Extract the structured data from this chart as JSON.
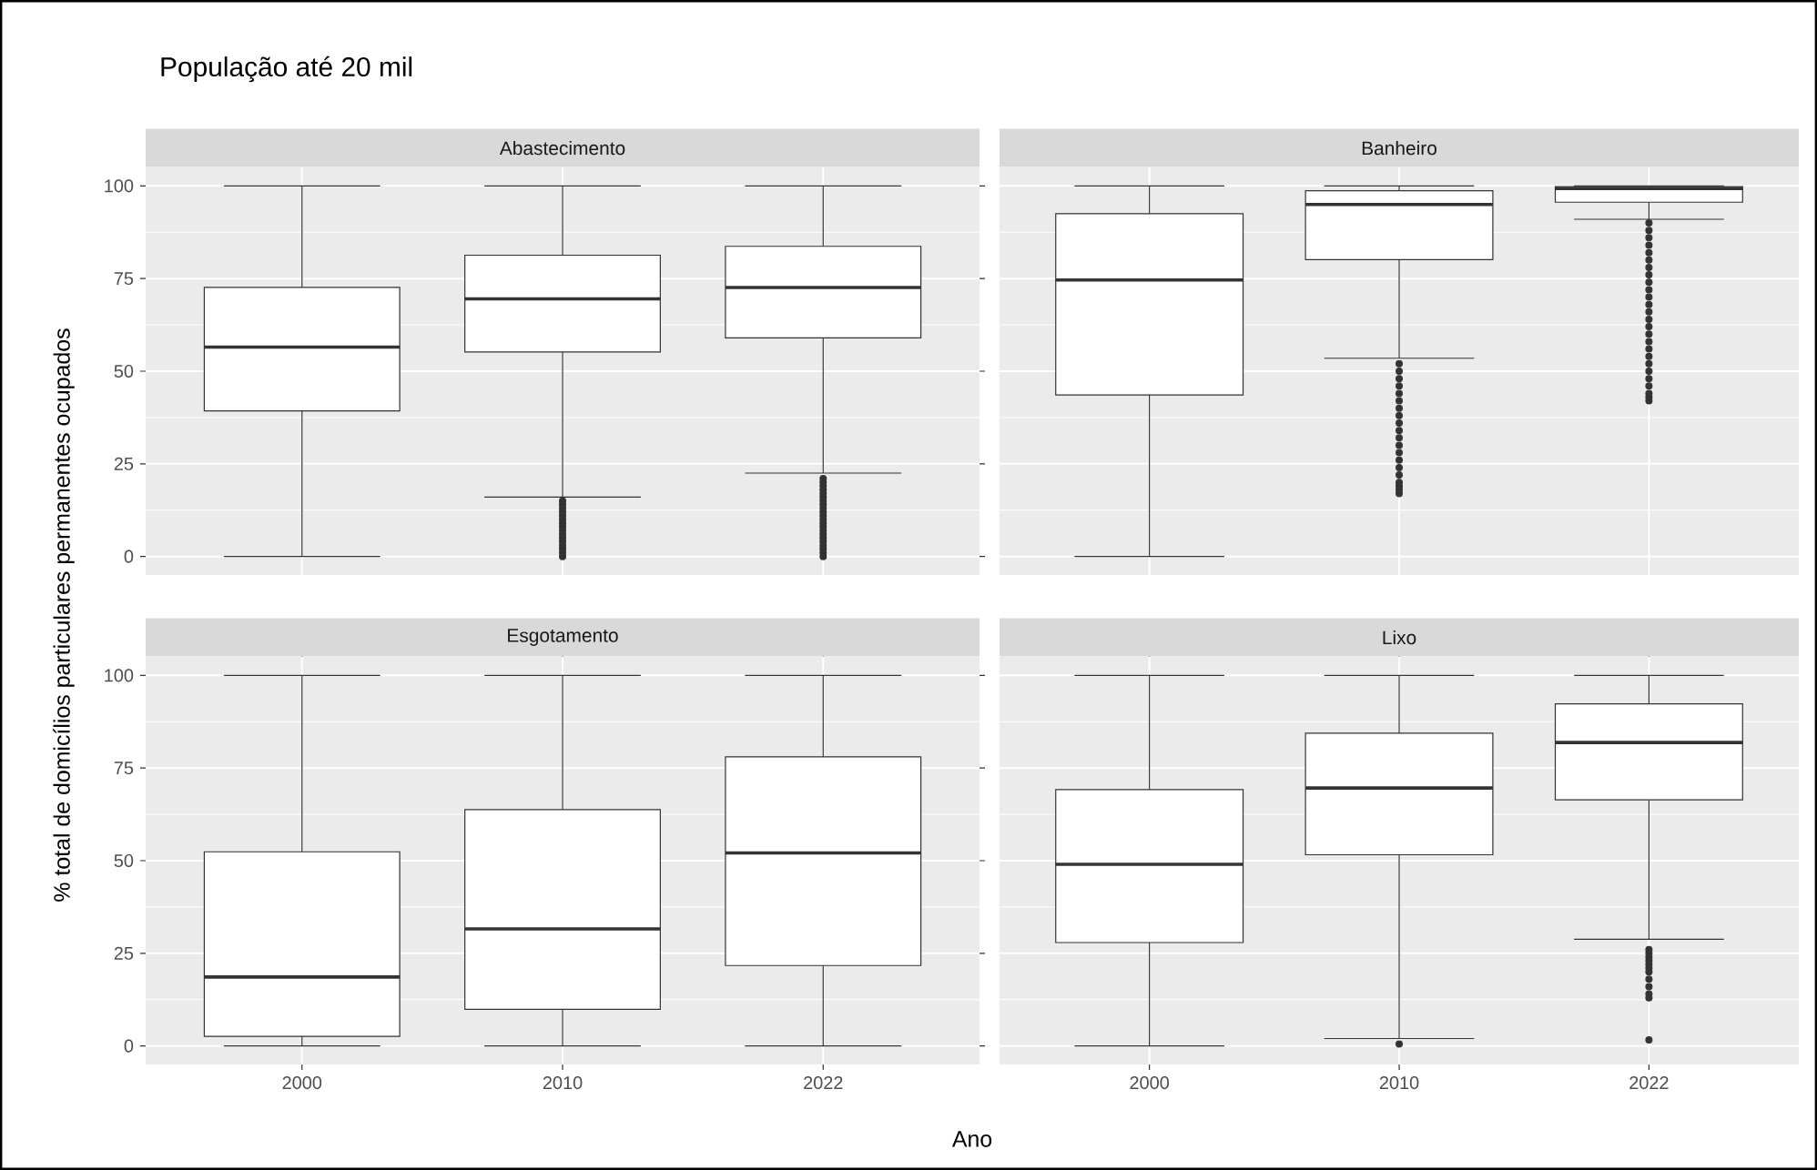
{
  "chart_data": [
    {
      "type": "box",
      "title": "Abastecimento",
      "annotations": [
        "População até 20 mil"
      ],
      "ylabel": "% total de domicílios particulares permanentes ocupados",
      "categories": [
        "2000",
        "2010",
        "2022"
      ],
      "ylim": [
        -5,
        105
      ],
      "yticks": [
        0,
        25,
        50,
        75,
        100
      ],
      "grid": true,
      "tick_labels": "y",
      "boxes": [
        {
          "low": 0,
          "q1": 39.3,
          "median": 56.5,
          "q3": 72.6,
          "high": 100
        },
        {
          "low": 16,
          "q1": 55.2,
          "median": 69.5,
          "q3": 81.3,
          "high": 100,
          "outliers": [
            0,
            1,
            2,
            3,
            4,
            5,
            6,
            7,
            8,
            9,
            10,
            11,
            12,
            13,
            14,
            15
          ]
        },
        {
          "low": 22.5,
          "q1": 59,
          "median": 72.6,
          "q3": 83.7,
          "high": 100,
          "outliers": [
            0,
            1,
            2,
            3,
            4,
            5,
            6,
            7,
            8,
            9,
            10,
            11,
            12,
            13,
            14,
            15,
            16,
            17,
            18,
            19,
            20,
            21
          ]
        }
      ]
    },
    {
      "type": "box",
      "title": "Banheiro",
      "categories": [
        "2000",
        "2010",
        "2022"
      ],
      "ylim": [
        -5,
        105
      ],
      "yticks": [
        0,
        25,
        50,
        75,
        100
      ],
      "grid": true,
      "tick_labels": false,
      "boxes": [
        {
          "low": 0,
          "q1": 43.6,
          "median": 74.6,
          "q3": 92.5,
          "high": 100
        },
        {
          "low": 53.5,
          "q1": 80.1,
          "median": 95,
          "q3": 98.7,
          "high": 100,
          "outliers": [
            17,
            18,
            19,
            20,
            22,
            24,
            26,
            28,
            30,
            32,
            34,
            36,
            38,
            40,
            42,
            44,
            46,
            48,
            50,
            52
          ]
        },
        {
          "low": 91,
          "q1": 95.6,
          "median": 99.3,
          "q3": 99.8,
          "high": 100,
          "outliers": [
            42,
            43,
            44,
            46,
            48,
            50,
            52,
            54,
            56,
            58,
            60,
            62,
            64,
            66,
            68,
            70,
            72,
            74,
            76,
            78,
            80,
            82,
            84,
            86,
            88,
            90
          ]
        }
      ]
    },
    {
      "type": "box",
      "title": "Esgotamento",
      "xlabel": "Ano",
      "categories": [
        "2000",
        "2010",
        "2022"
      ],
      "ylim": [
        -5,
        105
      ],
      "yticks": [
        0,
        25,
        50,
        75,
        100
      ],
      "grid": true,
      "boxes": [
        {
          "low": 0,
          "q1": 2.6,
          "median": 18.6,
          "q3": 52.4,
          "high": 100
        },
        {
          "low": 0,
          "q1": 9.9,
          "median": 31.6,
          "q3": 63.8,
          "high": 100
        },
        {
          "low": 0,
          "q1": 21.7,
          "median": 52.1,
          "q3": 78,
          "high": 100
        }
      ]
    },
    {
      "type": "box",
      "title": "Lixo",
      "categories": [
        "2000",
        "2010",
        "2022"
      ],
      "ylim": [
        -5,
        105
      ],
      "yticks": [
        0,
        25,
        50,
        75,
        100
      ],
      "grid": true,
      "tick_labels": "x",
      "boxes": [
        {
          "low": 0,
          "q1": 27.9,
          "median": 49,
          "q3": 69.2,
          "high": 100
        },
        {
          "low": 2,
          "q1": 51.6,
          "median": 69.6,
          "q3": 84.4,
          "high": 100,
          "outliers": [
            0.5
          ]
        },
        {
          "low": 28.8,
          "q1": 66.4,
          "median": 81.9,
          "q3": 92.3,
          "high": 100,
          "outliers": [
            1.6,
            13,
            14,
            16,
            18,
            20,
            21,
            22,
            23,
            24,
            25,
            26
          ]
        }
      ]
    }
  ]
}
